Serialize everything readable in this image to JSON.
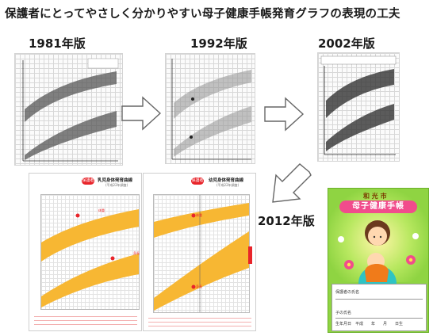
{
  "title": "保護者にとってやさしく分かりやすい母子健康手帳発育グラフの表現の工夫",
  "editions": {
    "e1981": "1981年版",
    "e1992": "1992年版",
    "e2002": "2002年版",
    "e2012": "2012年版"
  },
  "pages_2012": {
    "left_title": "乳児身体発育曲線",
    "left_sub": "(平成22年調査)",
    "right_title": "幼児身体発育曲線",
    "right_sub": "(平成22年調査)",
    "badge": "保護者",
    "marker_weight": "体重",
    "marker_height": "身長"
  },
  "handbook": {
    "city": "和 光 市",
    "title": "母子健康手帳",
    "guardian_label": "保護者の氏名",
    "child_label": "子の氏名",
    "birth_label": "生年月日　平成　　年　　月　　日生"
  },
  "colors": {
    "band_yellow": "#f7b733",
    "accent_red": "#e8242a",
    "cover_green": "#8fd442",
    "cover_pink": "#f14c8c"
  }
}
